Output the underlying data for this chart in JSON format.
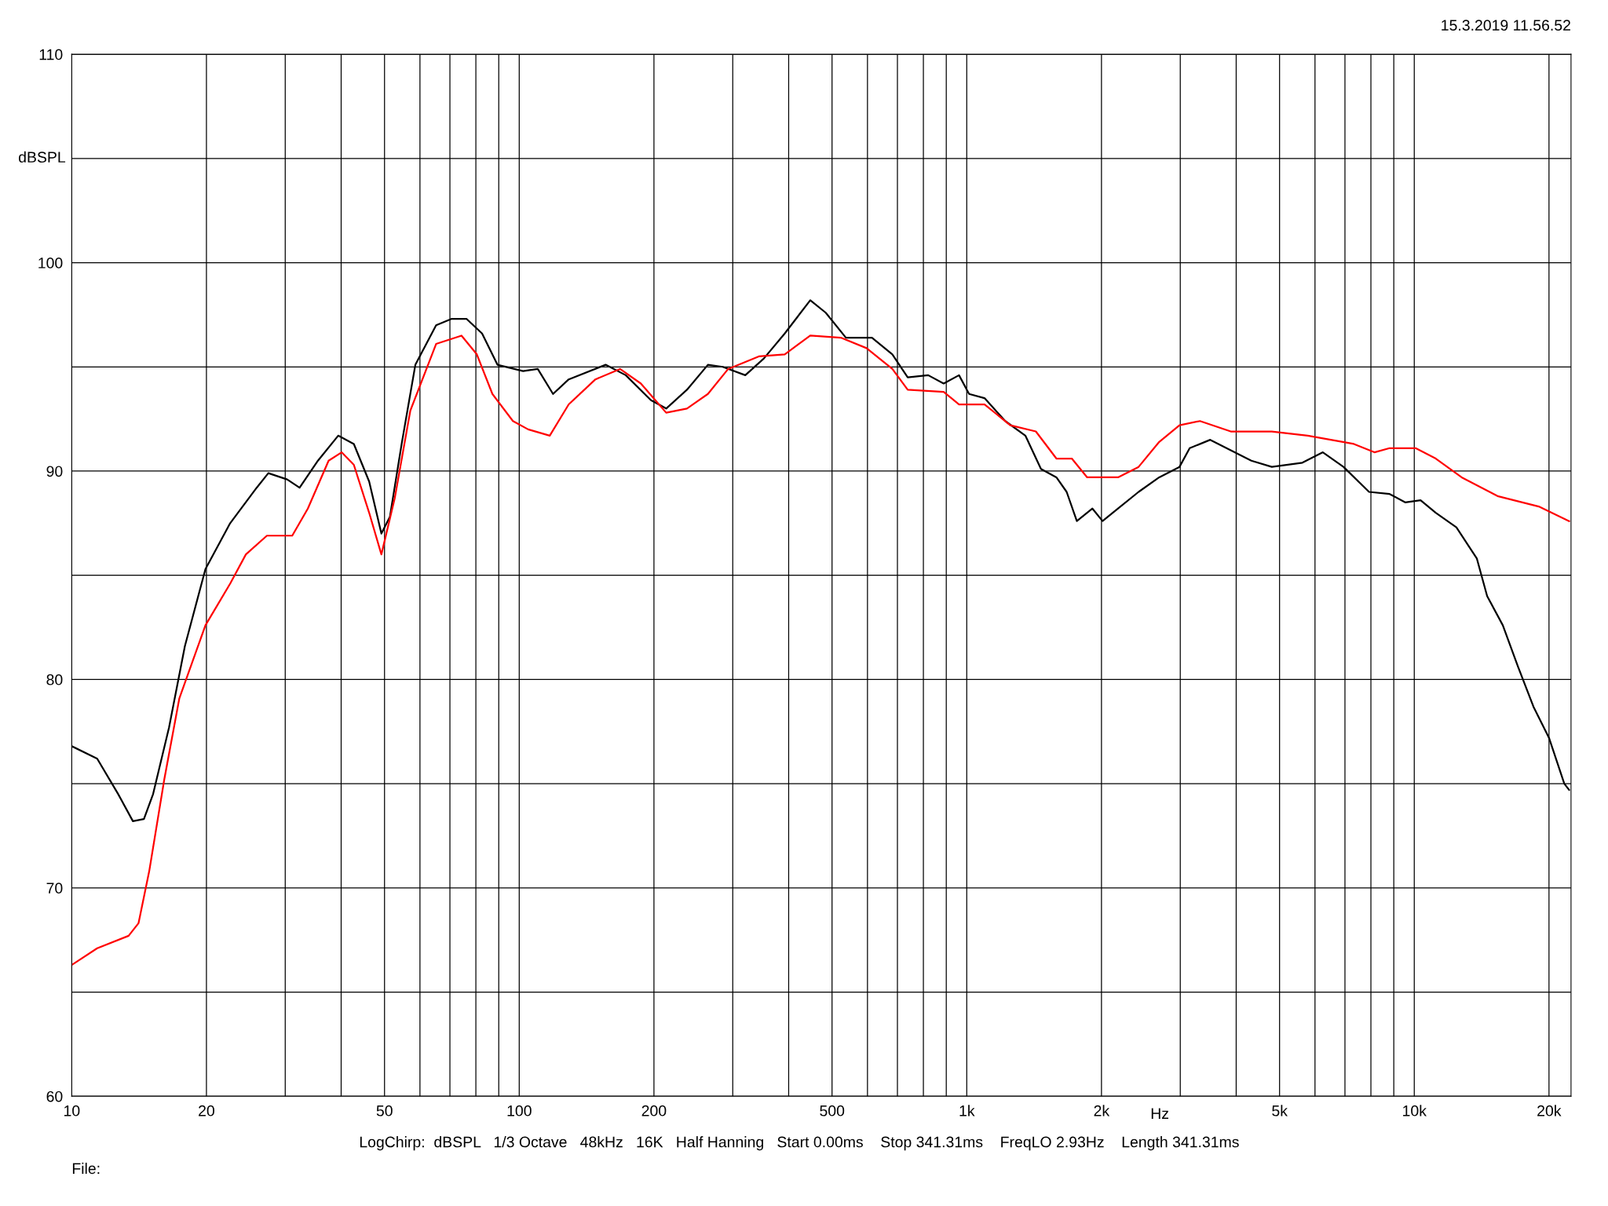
{
  "chart_data": {
    "type": "line",
    "xlabel": "Hz",
    "ylabel": "dBSPL",
    "annotations": [
      "15.3.2019 11.56.52",
      "LogChirp:  dBSPL   1/3 Octave   48kHz   16K   Half Hanning   Start 0.00ms    Stop 341.31ms    FreqLO 2.93Hz    Length 341.31ms",
      "File:"
    ],
    "log": "x",
    "grid": true,
    "line_style": "solid",
    "marker": "none",
    "xlim": [
      10,
      22400
    ],
    "ylim": [
      60,
      110
    ],
    "xticks": [
      10,
      20,
      {
        "value": 30,
        "label": null
      },
      {
        "value": 40,
        "label": null
      },
      50,
      {
        "value": 60,
        "label": null
      },
      {
        "value": 70,
        "label": null
      },
      {
        "value": 80,
        "label": null
      },
      {
        "value": 90,
        "label": null
      },
      100,
      200,
      {
        "value": 300,
        "label": null
      },
      {
        "value": 400,
        "label": null
      },
      500,
      {
        "value": 600,
        "label": null
      },
      {
        "value": 700,
        "label": null
      },
      {
        "value": 800,
        "label": null
      },
      {
        "value": 900,
        "label": null
      },
      {
        "value": 1000,
        "label": "1k"
      },
      {
        "value": 2000,
        "label": "2k"
      },
      {
        "value": 3000,
        "label": null
      },
      {
        "value": 4000,
        "label": null
      },
      {
        "value": 5000,
        "label": "5k"
      },
      {
        "value": 6000,
        "label": null
      },
      {
        "value": 7000,
        "label": null
      },
      {
        "value": 8000,
        "label": null
      },
      {
        "value": 9000,
        "label": null
      },
      {
        "value": 10000,
        "label": "10k"
      },
      {
        "value": 20000,
        "label": "20k"
      }
    ],
    "yticks": [
      60,
      {
        "value": 65,
        "label": null
      },
      70,
      {
        "value": 75,
        "label": null
      },
      80,
      {
        "value": 85,
        "label": null
      },
      90,
      {
        "value": 95,
        "label": null
      },
      100,
      {
        "value": 105,
        "label": null
      },
      110
    ],
    "series": [
      {
        "color": "#000000",
        "x": [
          10,
          11.4,
          12.7,
          13.7,
          14.5,
          15.2,
          16.5,
          17.9,
          19.9,
          22.6,
          25.9,
          27.5,
          30.3,
          32.3,
          35.5,
          39.4,
          42.7,
          46.2,
          49.2,
          51.4,
          54.7,
          58.6,
          65.2,
          70.5,
          76.3,
          82.6,
          89.4,
          102,
          110,
          119,
          129,
          156,
          173,
          197,
          213,
          237,
          264,
          285,
          320,
          352,
          392,
          447,
          484,
          537,
          614,
          682,
          738,
          820,
          888,
          961,
          1012,
          1096,
          1219,
          1352,
          1465,
          1586,
          1672,
          1762,
          1909,
          2011,
          2178,
          2421,
          2692,
          2988,
          3149,
          3500,
          3890,
          4324,
          4805,
          5623,
          6248,
          6947,
          7925,
          8810,
          9541,
          10330,
          11170,
          12420,
          13800,
          14550,
          15770,
          17060,
          18460,
          20000,
          21640,
          22180
        ],
        "values": [
          76.8,
          76.2,
          74.5,
          73.2,
          73.3,
          74.5,
          77.7,
          81.6,
          85.3,
          87.5,
          89.2,
          89.9,
          89.6,
          89.2,
          90.5,
          91.7,
          91.3,
          89.5,
          87.0,
          87.8,
          91.4,
          95.1,
          97.0,
          97.3,
          97.3,
          96.6,
          95.1,
          94.8,
          94.9,
          93.7,
          94.4,
          95.1,
          94.6,
          93.4,
          93.0,
          93.9,
          95.1,
          95.0,
          94.6,
          95.4,
          96.6,
          98.2,
          97.6,
          96.4,
          96.4,
          95.6,
          94.5,
          94.6,
          94.2,
          94.6,
          93.7,
          93.5,
          92.4,
          91.7,
          90.1,
          89.7,
          89.0,
          87.6,
          88.2,
          87.6,
          88.2,
          89.0,
          89.7,
          90.2,
          91.1,
          91.5,
          91.0,
          90.5,
          90.2,
          90.4,
          90.9,
          90.2,
          89.0,
          88.9,
          88.5,
          88.6,
          88.0,
          87.3,
          85.8,
          84.0,
          82.6,
          80.6,
          78.7,
          77.2,
          75.0,
          74.7
        ]
      },
      {
        "color": "#ff0000",
        "x": [
          10,
          11.4,
          13.4,
          14.1,
          14.9,
          16.1,
          17.4,
          19.9,
          22.6,
          24.5,
          27.3,
          31.1,
          33.7,
          37.5,
          40.1,
          42.7,
          46.2,
          49.2,
          52.7,
          57.1,
          65.2,
          74.3,
          80.4,
          87.1,
          96.8,
          104.7,
          117,
          129,
          148,
          168,
          187,
          213,
          237,
          264,
          293,
          343,
          392,
          447,
          523,
          597,
          682,
          738,
          888,
          961,
          1096,
          1251,
          1427,
          1586,
          1717,
          1858,
          2178,
          2421,
          2692,
          2988,
          3320,
          3890,
          4805,
          5781,
          7328,
          8147,
          8810,
          10070,
          11170,
          12760,
          15350,
          18970,
          22180
        ],
        "values": [
          66.3,
          67.1,
          67.7,
          68.3,
          70.8,
          75.2,
          79.1,
          82.6,
          84.6,
          86.0,
          86.9,
          86.9,
          88.2,
          90.5,
          90.9,
          90.3,
          88.0,
          86.0,
          88.7,
          92.9,
          96.1,
          96.5,
          95.6,
          93.7,
          92.4,
          92.0,
          91.7,
          93.2,
          94.4,
          94.9,
          94.2,
          92.8,
          93.0,
          93.7,
          94.9,
          95.5,
          95.6,
          96.5,
          96.4,
          95.9,
          94.9,
          93.9,
          93.8,
          93.2,
          93.2,
          92.2,
          91.9,
          90.6,
          90.6,
          89.7,
          89.7,
          90.2,
          91.4,
          92.2,
          92.4,
          91.9,
          91.9,
          91.7,
          91.3,
          90.9,
          91.1,
          91.1,
          90.6,
          89.7,
          88.8,
          88.3,
          87.6
        ]
      }
    ]
  }
}
